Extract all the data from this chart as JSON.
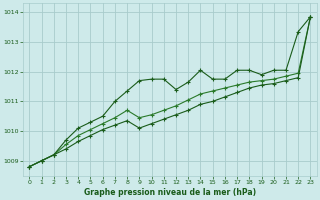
{
  "title": "Graphe pression niveau de la mer (hPa)",
  "background_color": "#ceeaea",
  "grid_color": "#a8cccc",
  "line_color_dark": "#1a5c1a",
  "line_color_mid": "#2a7a2a",
  "xlim": [
    -0.5,
    23.5
  ],
  "ylim": [
    1008.5,
    1014.3
  ],
  "xticks": [
    0,
    1,
    2,
    3,
    4,
    5,
    6,
    7,
    8,
    9,
    10,
    11,
    12,
    13,
    14,
    15,
    16,
    17,
    18,
    19,
    20,
    21,
    22,
    23
  ],
  "yticks": [
    1009,
    1010,
    1011,
    1012,
    1013,
    1014
  ],
  "hours": [
    0,
    1,
    2,
    3,
    4,
    5,
    6,
    7,
    8,
    9,
    10,
    11,
    12,
    13,
    14,
    15,
    16,
    17,
    18,
    19,
    20,
    21,
    22,
    23
  ],
  "line_top": [
    1008.8,
    1009.0,
    1009.2,
    1009.7,
    1010.1,
    1010.3,
    1010.5,
    1011.0,
    1011.35,
    1011.7,
    1011.75,
    1011.75,
    1011.4,
    1011.65,
    1012.05,
    1011.75,
    1011.75,
    1012.05,
    1012.05,
    1011.9,
    1012.05,
    1012.05,
    1013.35,
    1013.85
  ],
  "line_mid": [
    1008.8,
    1009.0,
    1009.2,
    1009.55,
    1009.85,
    1010.05,
    1010.25,
    1010.45,
    1010.7,
    1010.45,
    1010.55,
    1010.7,
    1010.85,
    1011.05,
    1011.25,
    1011.35,
    1011.45,
    1011.55,
    1011.65,
    1011.7,
    1011.75,
    1011.85,
    1011.95,
    1013.85
  ],
  "line_bot": [
    1008.8,
    1009.0,
    1009.2,
    1009.4,
    1009.65,
    1009.85,
    1010.05,
    1010.2,
    1010.35,
    1010.1,
    1010.25,
    1010.4,
    1010.55,
    1010.7,
    1010.9,
    1011.0,
    1011.15,
    1011.3,
    1011.45,
    1011.55,
    1011.6,
    1011.7,
    1011.8,
    1013.85
  ]
}
